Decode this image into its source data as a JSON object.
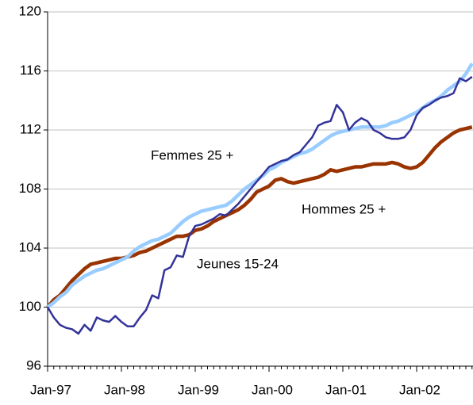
{
  "chart_data": {
    "type": "line",
    "categories": [
      "Jan-97",
      null,
      null,
      null,
      null,
      null,
      null,
      null,
      null,
      null,
      null,
      null,
      "Jan-98",
      null,
      null,
      null,
      null,
      null,
      null,
      null,
      null,
      null,
      null,
      null,
      "Jan-99",
      null,
      null,
      null,
      null,
      null,
      null,
      null,
      null,
      null,
      null,
      null,
      "Jan-00",
      null,
      null,
      null,
      null,
      null,
      null,
      null,
      null,
      null,
      null,
      null,
      "Jan-01",
      null,
      null,
      null,
      null,
      null,
      null,
      null,
      null,
      null,
      null,
      null,
      "Jan-02",
      null,
      null,
      null,
      null,
      null,
      null,
      null,
      null,
      null
    ],
    "series": [
      {
        "name": "Hommes 25 +",
        "color": "#993300",
        "values": [
          100,
          100.5,
          100.8,
          101.3,
          101.8,
          102.2,
          102.6,
          102.9,
          103.0,
          103.1,
          103.2,
          103.3,
          103.3,
          103.4,
          103.5,
          103.7,
          103.8,
          104.0,
          104.2,
          104.4,
          104.6,
          104.8,
          104.8,
          104.9,
          105.2,
          105.3,
          105.5,
          105.8,
          106.0,
          106.2,
          106.4,
          106.6,
          106.9,
          107.3,
          107.8,
          108.0,
          108.2,
          108.6,
          108.7,
          108.5,
          108.4,
          108.5,
          108.6,
          108.7,
          108.8,
          109.0,
          109.3,
          109.2,
          109.3,
          109.4,
          109.5,
          109.5,
          109.6,
          109.7,
          109.7,
          109.7,
          109.8,
          109.7,
          109.5,
          109.4,
          109.5,
          109.8,
          110.3,
          110.8,
          111.2,
          111.5,
          111.8,
          112.0,
          112.1,
          112.2
        ]
      },
      {
        "name": "Femmes 25 +",
        "color": "#99ccff",
        "values": [
          100,
          100.3,
          100.7,
          101.0,
          101.5,
          101.8,
          102.1,
          102.3,
          102.5,
          102.6,
          102.8,
          103.0,
          103.2,
          103.4,
          103.8,
          104.1,
          104.3,
          104.5,
          104.6,
          104.8,
          105.0,
          105.4,
          105.8,
          106.1,
          106.3,
          106.5,
          106.6,
          106.7,
          106.8,
          106.9,
          107.2,
          107.6,
          108.0,
          108.3,
          108.6,
          108.9,
          109.3,
          109.5,
          109.8,
          110.0,
          110.2,
          110.4,
          110.5,
          110.7,
          111.0,
          111.3,
          111.6,
          111.8,
          111.9,
          112.0,
          112.1,
          112.2,
          112.2,
          112.2,
          112.2,
          112.3,
          112.5,
          112.6,
          112.8,
          113.0,
          113.2,
          113.5,
          113.8,
          114.0,
          114.3,
          114.7,
          115.0,
          115.3,
          115.8,
          116.5
        ]
      },
      {
        "name": "Jeunes 15-24",
        "color": "#333399",
        "values": [
          100.0,
          99.3,
          98.8,
          98.6,
          98.5,
          98.2,
          98.8,
          98.4,
          99.3,
          99.1,
          99.0,
          99.4,
          99.0,
          98.7,
          98.7,
          99.3,
          99.8,
          100.8,
          100.6,
          102.5,
          102.7,
          103.5,
          103.4,
          104.8,
          105.5,
          105.6,
          105.8,
          106.0,
          106.3,
          106.2,
          106.6,
          107.0,
          107.5,
          108.0,
          108.5,
          109.0,
          109.5,
          109.7,
          109.9,
          110.0,
          110.3,
          110.5,
          111.0,
          111.5,
          112.3,
          112.5,
          112.6,
          113.7,
          113.2,
          112.0,
          112.5,
          112.8,
          112.6,
          112.0,
          111.8,
          111.5,
          111.4,
          111.4,
          111.5,
          112.0,
          113.0,
          113.5,
          113.7,
          114.0,
          114.2,
          114.3,
          114.5,
          115.5,
          115.3,
          115.6
        ]
      }
    ],
    "ylim": [
      96,
      120
    ],
    "yticks": [
      96,
      100,
      104,
      108,
      112,
      116,
      120
    ],
    "grid": true
  }
}
